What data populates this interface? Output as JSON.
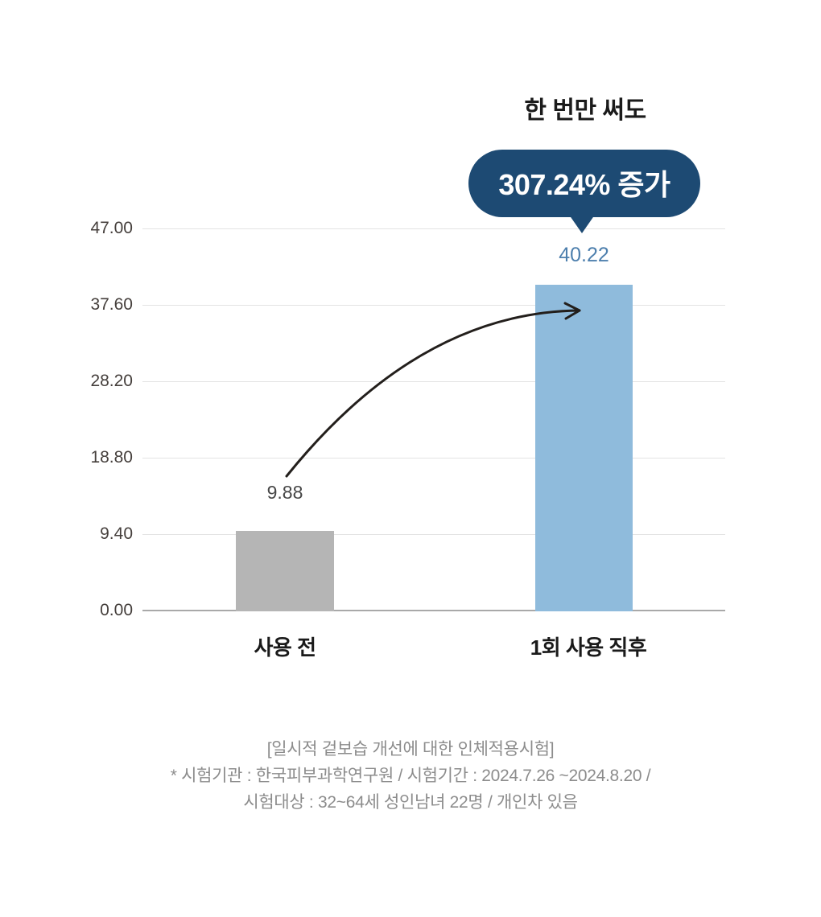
{
  "header": {
    "title": "한 번만 써도",
    "badge": "307.24% 증가"
  },
  "chart_data": {
    "type": "bar",
    "title": "한 번만 써도",
    "categories": [
      "사용 전",
      "1회 사용 직후"
    ],
    "values": [
      9.88,
      40.22
    ],
    "value_labels": [
      "9.88",
      "40.22"
    ],
    "y_ticks": [
      "47.00",
      "37.60",
      "28.20",
      "18.80",
      "9.40",
      "0.00"
    ],
    "ylim": [
      0,
      47
    ],
    "annotation": "307.24% 증가",
    "grid": true,
    "legend_position": "none",
    "xlabel": "",
    "ylabel": ""
  },
  "footnote": {
    "line1": "[일시적 겉보습 개선에 대한 인체적용시험]",
    "line2": "* 시험기관 : 한국피부과학연구원 / 시험기간 : 2024.7.26 ~2024.8.20 /",
    "line3": "시험대상 : 32~64세 성인남녀 22명 / 개인차 있음"
  },
  "colors": {
    "badge_bg": "#1d4a73",
    "badge_text": "#ffffff",
    "bar_before": "#b5b5b5",
    "bar_after": "#8fbbdc",
    "value_before_text": "#474747",
    "value_after_text": "#4d7fad",
    "gridline": "#e3e3e3",
    "axis_line": "#a9a9a9",
    "label_text": "#453f3c",
    "title_text": "#1b1b1b",
    "footnote_text": "#8c8c8c",
    "arrow": "#231f1c"
  }
}
